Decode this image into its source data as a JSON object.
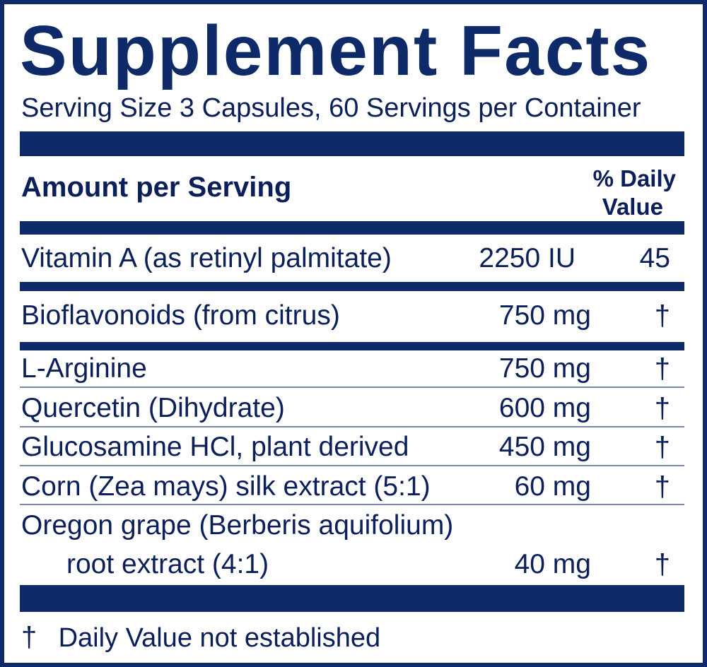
{
  "label": {
    "title": "Supplement Facts",
    "serving_info": "Serving Size 3 Capsules, 60 Servings per Container",
    "amount_header": "Amount per Serving",
    "dv_header_line1": "% Daily",
    "dv_header_line2": "Value"
  },
  "nutrients": [
    {
      "name": "Vitamin A (as retinyl palmitate)",
      "amount": "2250 IU",
      "daily_value": "45"
    },
    {
      "name": "Bioflavonoids (from citrus)",
      "amount": "750 mg",
      "daily_value": "†"
    },
    {
      "name": "L-Arginine",
      "amount": "750 mg",
      "daily_value": "†"
    },
    {
      "name": "Quercetin (Dihydrate)",
      "amount": "600 mg",
      "daily_value": "†"
    },
    {
      "name": "Glucosamine HCl, plant derived",
      "amount": "450 mg",
      "daily_value": "†"
    },
    {
      "name": "Corn (Zea mays) silk extract (5:1)",
      "amount": "60 mg",
      "daily_value": "†"
    },
    {
      "name_line1": "Oregon grape (Berberis aquifolium)",
      "name_line2": "root extract (4:1)",
      "amount": "40 mg",
      "daily_value": "†"
    }
  ],
  "footnote": {
    "symbol": "†",
    "text": "Daily Value not established"
  },
  "colors": {
    "border_and_bars": "#0f2a69",
    "text": "#0b1f5a",
    "divider": "#7a89b1"
  }
}
